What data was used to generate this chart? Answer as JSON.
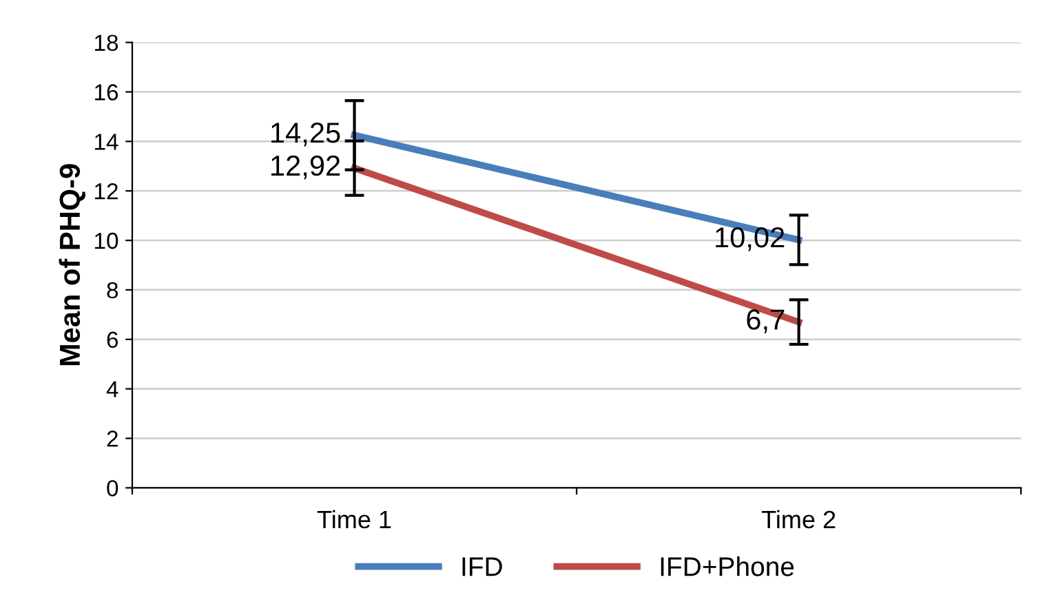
{
  "chart_data": {
    "type": "line",
    "ylabel": "Mean of PHQ-9",
    "categories": [
      "Time 1",
      "Time 2"
    ],
    "series": [
      {
        "name": "IFD",
        "color": "#4a7ebb",
        "values": [
          14.25,
          10.02
        ],
        "errors": [
          1.4,
          1.0
        ],
        "value_labels": [
          "14,25",
          "10,02"
        ]
      },
      {
        "name": "IFD+Phone",
        "color": "#be4b48",
        "values": [
          12.92,
          6.7
        ],
        "errors": [
          1.1,
          0.9
        ],
        "value_labels": [
          "12,92",
          "6,7"
        ]
      }
    ],
    "ylim": [
      0,
      18
    ],
    "yticks": [
      0,
      2,
      4,
      6,
      8,
      10,
      12,
      14,
      16,
      18
    ],
    "grid": "y",
    "legend": "bottom",
    "marker": "none",
    "line_style": "solid"
  }
}
